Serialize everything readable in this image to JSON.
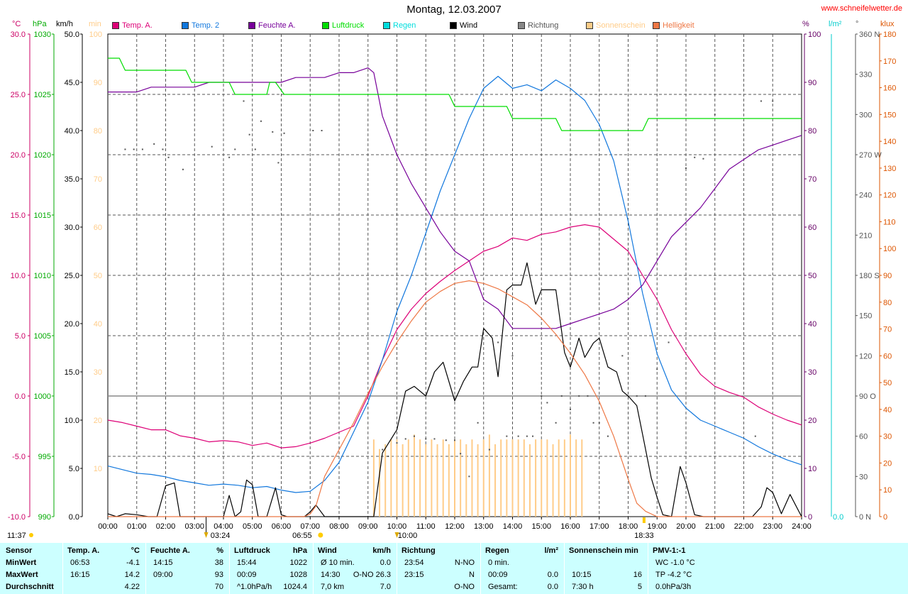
{
  "page": {
    "title": "Montag, 12.03.2007",
    "site": "www.schneifelwetter.de"
  },
  "chart_data": {
    "type": "line",
    "title": "Montag, 12.03.2007",
    "x_ticks": [
      "00:00",
      "01:00",
      "02:00",
      "03:00",
      "04:00",
      "05:00",
      "06:00",
      "07:00",
      "08:00",
      "09:00",
      "10:00",
      "11:00",
      "12:00",
      "13:00",
      "14:00",
      "15:00",
      "16:00",
      "17:00",
      "18:00",
      "19:00",
      "20:00",
      "21:00",
      "22:00",
      "23:00",
      "24:00"
    ],
    "x_markers": {
      "moonrise": "03:24",
      "sunrise": "06:55",
      "moon": "10:00",
      "sunset": "18:33",
      "now": "11:37"
    },
    "axes": {
      "temp": {
        "unit": "°C",
        "ticks": [
          "30.0",
          "25.0",
          "20.0",
          "15.0",
          "10.0",
          "5.0",
          "0.0",
          "-5.0",
          "-10.0"
        ],
        "ylim": [
          -10,
          30
        ],
        "color": "#cc0066"
      },
      "pressure": {
        "unit": "hPa",
        "ticks": [
          "1030",
          "1025",
          "1020",
          "1015",
          "1010",
          "1005",
          "1000",
          "995",
          "990"
        ],
        "ylim": [
          990,
          1030
        ],
        "color": "#00aa00"
      },
      "wind": {
        "unit": "km/h",
        "ticks": [
          "50.0",
          "45.0",
          "40.0",
          "35.0",
          "30.0",
          "25.0",
          "20.0",
          "15.0",
          "10.0",
          "5.0",
          "0.0"
        ],
        "ylim": [
          0,
          50
        ],
        "color": "#000000"
      },
      "sun": {
        "unit": "min",
        "ticks": [
          "100",
          "90",
          "80",
          "70",
          "60",
          "50",
          "40",
          "30",
          "20",
          "10"
        ],
        "ylim": [
          0,
          100
        ],
        "color": "#ffcc88"
      },
      "humidity": {
        "unit": "%",
        "ticks": [
          "100",
          "90",
          "80",
          "70",
          "60",
          "50",
          "40",
          "30",
          "20",
          "10",
          "0"
        ],
        "ylim": [
          0,
          100
        ],
        "color": "#660066"
      },
      "rain": {
        "unit": "l/m²",
        "ticks": [
          "0.0"
        ],
        "ylim": [
          0,
          1
        ],
        "color": "#00cccc"
      },
      "direction": {
        "unit": "°",
        "ticks": [
          "360 N",
          "330",
          "300",
          "270 W",
          "240",
          "210",
          "180 S",
          "150",
          "120",
          "90 O",
          "60",
          "30",
          "0 N"
        ],
        "ylim": [
          0,
          360
        ],
        "color": "#555555"
      },
      "light": {
        "unit": "klux",
        "ticks": [
          "180",
          "170",
          "160",
          "150",
          "140",
          "130",
          "120",
          "110",
          "100",
          "90",
          "80",
          "70",
          "60",
          "50",
          "40",
          "30",
          "20",
          "10",
          "0"
        ],
        "ylim": [
          0,
          180
        ],
        "color": "#dd5500"
      }
    },
    "legend": [
      {
        "name": "Temp. A.",
        "color": "#dd0077"
      },
      {
        "name": "Temp. 2",
        "color": "#1177dd"
      },
      {
        "name": "Feuchte A.",
        "color": "#770099"
      },
      {
        "name": "Luftdruck",
        "color": "#00dd00"
      },
      {
        "name": "Regen",
        "color": "#00dddd"
      },
      {
        "name": "Wind",
        "color": "#000000"
      },
      {
        "name": "Richtung",
        "color": "#888888"
      },
      {
        "name": "Sonnenschein",
        "color": "#ffcc88"
      },
      {
        "name": "Helligkeit",
        "color": "#ee7744"
      }
    ],
    "series": [
      {
        "name": "Temp. A.",
        "axis": "temp",
        "color": "#dd0077",
        "x": [
          0,
          0.5,
          1,
          1.5,
          2,
          2.5,
          3,
          3.5,
          4,
          4.5,
          5,
          5.5,
          6,
          6.5,
          7,
          7.5,
          8,
          8.5,
          9,
          9.5,
          10,
          10.5,
          11,
          11.5,
          12,
          12.5,
          13,
          13.5,
          14,
          14.5,
          15,
          15.5,
          16,
          16.5,
          17,
          17.5,
          18,
          18.5,
          19,
          19.5,
          20,
          20.5,
          21,
          21.5,
          22,
          22.5,
          23,
          23.5,
          24
        ],
        "y": [
          -2.0,
          -2.2,
          -2.5,
          -2.8,
          -2.8,
          -3.3,
          -3.5,
          -3.8,
          -3.7,
          -3.8,
          -4.1,
          -3.9,
          -4.3,
          -4.2,
          -3.9,
          -3.5,
          -3.0,
          -2.5,
          0.0,
          3.0,
          5.5,
          7.2,
          8.5,
          9.5,
          10.4,
          11.2,
          12.0,
          12.4,
          13.1,
          12.9,
          13.4,
          13.6,
          14.0,
          14.2,
          14.0,
          13.0,
          12.0,
          10.0,
          8.0,
          5.5,
          3.5,
          1.8,
          0.8,
          0.3,
          -0.1,
          -0.9,
          -1.5,
          -2.0,
          -2.4
        ]
      },
      {
        "name": "Temp. 2",
        "axis": "temp",
        "color": "#1177dd",
        "x": [
          0,
          0.5,
          1,
          1.5,
          2,
          2.5,
          3,
          3.5,
          4,
          4.5,
          5,
          5.5,
          6,
          6.5,
          7,
          7.5,
          8,
          8.5,
          9,
          9.5,
          10,
          10.5,
          11,
          11.5,
          12,
          12.5,
          13,
          13.5,
          14,
          14.5,
          15,
          15.5,
          16,
          16.5,
          17,
          17.5,
          18,
          18.5,
          19,
          19.5,
          20,
          20.5,
          21,
          21.5,
          22,
          22.5,
          23,
          23.5,
          24
        ],
        "y": [
          -5.8,
          -6.1,
          -6.4,
          -6.5,
          -6.7,
          -7.0,
          -7.2,
          -7.4,
          -7.3,
          -7.4,
          -7.6,
          -7.5,
          -7.8,
          -8.0,
          -7.9,
          -7.0,
          -5.5,
          -3.0,
          -0.5,
          3.0,
          7.0,
          10.0,
          13.5,
          17.0,
          20.0,
          23.0,
          25.5,
          26.5,
          25.5,
          25.8,
          25.3,
          26.2,
          25.5,
          24.5,
          22.5,
          19.5,
          14.5,
          8.5,
          3.5,
          0.5,
          -1.0,
          -2.0,
          -2.5,
          -3.0,
          -3.5,
          -4.2,
          -4.8,
          -5.3,
          -5.7
        ]
      },
      {
        "name": "Feuchte A.",
        "axis": "humidity",
        "color": "#770099",
        "x": [
          0,
          0.5,
          1,
          1.5,
          2,
          2.5,
          3,
          3.5,
          4,
          4.5,
          5,
          5.5,
          6,
          6.5,
          7,
          7.5,
          8,
          8.5,
          9,
          9.2,
          9.5,
          10,
          10.5,
          11,
          11.5,
          12,
          12.5,
          13,
          13.5,
          14,
          14.5,
          15,
          15.5,
          16,
          16.5,
          17,
          17.5,
          18,
          18.5,
          19,
          19.5,
          20,
          20.5,
          21,
          21.5,
          22,
          22.5,
          23,
          23.5,
          24
        ],
        "y": [
          88,
          88,
          88,
          89,
          89,
          89,
          89,
          90,
          90,
          90,
          90,
          90,
          90,
          91,
          91,
          91,
          92,
          92,
          93,
          92,
          83,
          75,
          69,
          64,
          59,
          55,
          53,
          45,
          43,
          39,
          39,
          39,
          39,
          40,
          41,
          42,
          43,
          45,
          48,
          53,
          58,
          61,
          64,
          68,
          72,
          74,
          76,
          77,
          78,
          79
        ]
      },
      {
        "name": "Luftdruck",
        "axis": "pressure",
        "color": "#00dd00",
        "x": [
          0,
          0.4,
          0.6,
          2.7,
          2.9,
          4.2,
          4.4,
          5.5,
          5.6,
          5.8,
          6.1,
          6.3,
          11.8,
          12.0,
          13.8,
          14.0,
          15.5,
          15.7,
          16.0,
          18.5,
          18.7,
          24
        ],
        "y": [
          1028,
          1028,
          1027,
          1027,
          1026,
          1026,
          1025,
          1025,
          1026,
          1026,
          1025,
          1025,
          1025,
          1024,
          1024,
          1023,
          1023,
          1022,
          1022,
          1022,
          1023,
          1023
        ]
      },
      {
        "name": "Wind",
        "axis": "wind",
        "color": "#000000",
        "x": [
          0,
          0.3,
          0.6,
          1,
          1.4,
          1.7,
          2,
          2.3,
          2.5,
          3,
          3.5,
          3.8,
          4,
          4.2,
          4.4,
          4.6,
          4.8,
          5,
          5.2,
          5.5,
          5.8,
          6,
          6.2,
          6.5,
          6.8,
          7,
          7.2,
          7.5,
          7.8,
          8,
          8.5,
          9,
          9.2,
          9.5,
          10,
          10.3,
          10.6,
          11,
          11.3,
          11.6,
          12,
          12.3,
          12.6,
          12.8,
          13,
          13.3,
          13.5,
          13.8,
          14,
          14.3,
          14.5,
          14.8,
          15,
          15.3,
          15.5,
          15.8,
          16,
          16.3,
          16.5,
          16.8,
          17,
          17.3,
          17.6,
          17.8,
          18,
          18.3,
          18.5,
          18.8,
          19,
          19.2,
          19.5,
          19.8,
          20,
          20.3,
          20.6,
          21,
          21.3,
          21.6,
          22,
          22.3,
          22.6,
          22.8,
          23,
          23.3,
          23.6,
          24
        ],
        "y": [
          0.3,
          0,
          0.3,
          0.2,
          0,
          0,
          3.2,
          3.5,
          0,
          0,
          0,
          0,
          0,
          2.2,
          0,
          0.5,
          3.8,
          3.3,
          0,
          0,
          3.0,
          0.2,
          0,
          0,
          0,
          0.5,
          1.2,
          0,
          0,
          0,
          0,
          0,
          0,
          6.6,
          9.0,
          13.0,
          13.5,
          12.5,
          15.0,
          16.0,
          12.0,
          14.0,
          15.5,
          15.5,
          19.5,
          18.5,
          14.5,
          23.5,
          24.0,
          24.0,
          26.3,
          22.0,
          23.5,
          23.5,
          23.5,
          17.0,
          15.5,
          18.5,
          16.5,
          18.0,
          18.5,
          15.5,
          15.0,
          13.0,
          12.5,
          11.5,
          8.5,
          4.0,
          2.0,
          0.2,
          0,
          5.2,
          3.5,
          0.2,
          0,
          0,
          0,
          0,
          0,
          0,
          1.0,
          3.0,
          2.5,
          0.3,
          2.3,
          0
        ]
      },
      {
        "name": "Helligkeit",
        "axis": "light",
        "color": "#ee7744",
        "x": [
          0,
          6.8,
          7.0,
          7.2,
          7.5,
          8,
          8.5,
          9,
          9.5,
          10,
          10.5,
          11,
          11.5,
          12,
          12.5,
          13,
          13.5,
          14,
          14.5,
          15,
          15.5,
          16,
          16.5,
          17,
          17.5,
          18,
          18.3,
          18.6,
          19,
          24
        ],
        "y": [
          0,
          0,
          1,
          4,
          15,
          25,
          35,
          46,
          56,
          65,
          73,
          80,
          84,
          87,
          88,
          87,
          85,
          82,
          79,
          74,
          68,
          61,
          53,
          43,
          30,
          14,
          5,
          2,
          0,
          0
        ]
      }
    ],
    "sunshine_bars": {
      "axis": "sun",
      "color": "#ffcc88",
      "x": [
        9.2,
        9.4,
        9.6,
        9.8,
        10.0,
        10.2,
        10.4,
        10.6,
        10.8,
        11.0,
        11.2,
        11.4,
        11.6,
        11.8,
        12.0,
        12.2,
        12.4,
        12.6,
        12.8,
        13.0,
        13.2,
        13.4,
        13.6,
        13.8,
        14.0,
        14.2,
        14.4,
        14.6,
        14.8,
        15.0,
        15.2,
        15.4,
        15.6,
        15.8,
        16.0,
        16.2,
        16.4
      ],
      "y": [
        16,
        14,
        15,
        16,
        16,
        15,
        16,
        17,
        16,
        15,
        16,
        15,
        16,
        15,
        16,
        16,
        15,
        16,
        15,
        16,
        17,
        15,
        16,
        16,
        16,
        16,
        16,
        15,
        16,
        16,
        16,
        15,
        16,
        16,
        17,
        16,
        16
      ]
    },
    "direction_points": {
      "axis": "direction",
      "color": "#555555",
      "x": [
        0.6,
        0.9,
        1.2,
        1.6,
        1.9,
        2.1,
        2.6,
        3.6,
        4.2,
        4.4,
        4.7,
        4.9,
        5.1,
        5.3,
        5.7,
        5.9,
        6.1,
        7.1,
        7.4,
        9.5,
        9.7,
        10.0,
        10.3,
        10.6,
        11.0,
        11.3,
        11.7,
        12.0,
        12.2,
        12.5,
        12.8,
        13.2,
        13.5,
        13.8,
        14.0,
        14.2,
        14.5,
        14.7,
        15.0,
        15.2,
        15.5,
        15.7,
        16.0,
        16.3,
        16.6,
        16.8,
        17.0,
        17.3,
        17.8,
        18.3,
        18.6,
        19.0,
        19.4,
        20.0,
        20.3,
        20.6,
        21.0,
        22.4,
        22.6,
        23.0
      ],
      "y": [
        274,
        274,
        274,
        278,
        274,
        268,
        259,
        276,
        268,
        274,
        310,
        285,
        274,
        295,
        287,
        264,
        286,
        288,
        288,
        50,
        45,
        55,
        58,
        60,
        58,
        58,
        57,
        57,
        47,
        30,
        70,
        50,
        130,
        60,
        120,
        60,
        60,
        60,
        90,
        85,
        70,
        90,
        80,
        90,
        90,
        70,
        70,
        60,
        120,
        90,
        90,
        110,
        130,
        260,
        268,
        267,
        300,
        60,
        310,
        310
      ]
    }
  },
  "footer": {
    "columns": [
      {
        "header": [
          "Sensor",
          ""
        ],
        "rows": [
          [
            "MinWert",
            ""
          ],
          [
            "MaxWert",
            ""
          ],
          [
            "Durchschnitt",
            ""
          ]
        ]
      },
      {
        "header": [
          "Temp. A.",
          "°C"
        ],
        "rows": [
          [
            "06:53",
            "-4.1"
          ],
          [
            "16:15",
            "14.2"
          ],
          [
            "",
            "4.22"
          ]
        ]
      },
      {
        "header": [
          "Feuchte A.",
          "%"
        ],
        "rows": [
          [
            "14:15",
            "38"
          ],
          [
            "09:00",
            "93"
          ],
          [
            "",
            "70"
          ]
        ]
      },
      {
        "header": [
          "Luftdruck",
          "hPa"
        ],
        "rows": [
          [
            "15:44",
            "1022"
          ],
          [
            "00:09",
            "1028"
          ],
          [
            "^1.0hPa/h",
            "1024.4"
          ]
        ]
      },
      {
        "header": [
          "Wind",
          "km/h"
        ],
        "rows": [
          [
            "Ø 10 min.",
            "0.0"
          ],
          [
            "14:30",
            "O-NO 26.3"
          ],
          [
            "7,0 km",
            "7.0"
          ]
        ]
      },
      {
        "header": [
          "Richtung",
          ""
        ],
        "rows": [
          [
            "23:54",
            "N-NO"
          ],
          [
            "23:15",
            "N"
          ],
          [
            "",
            "O-NO"
          ]
        ]
      },
      {
        "header": [
          "Regen",
          "l/m²"
        ],
        "rows": [
          [
            "0 min.",
            ""
          ],
          [
            "00:09",
            "0.0"
          ],
          [
            "Gesamt:",
            "0.0"
          ]
        ]
      },
      {
        "header": [
          "Sonnenschein min",
          ""
        ],
        "rows": [
          [
            "",
            ""
          ],
          [
            "10:15",
            "16"
          ],
          [
            "7:30 h",
            "5"
          ]
        ]
      },
      {
        "header": [
          "PMV-1:-1",
          ""
        ],
        "rows": [
          [
            "WC -1.0 °C",
            ""
          ],
          [
            "TP -4.2 °C",
            ""
          ],
          [
            "0.0hPa/3h",
            ""
          ]
        ]
      }
    ]
  }
}
